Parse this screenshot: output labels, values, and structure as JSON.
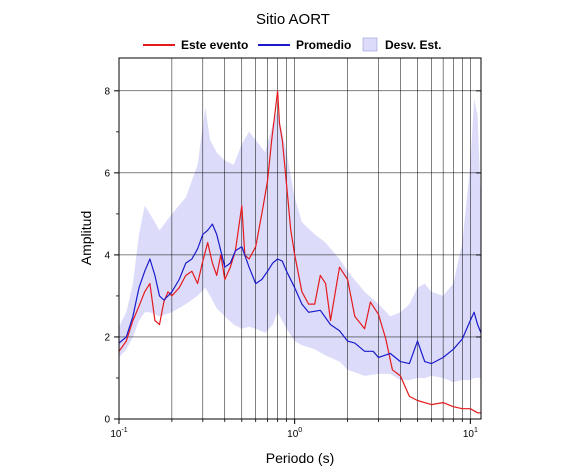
{
  "chart_data": {
    "type": "line",
    "title": "Sitio AORT",
    "xlabel": "Periodo (s)",
    "ylabel": "Amplitud",
    "xscale": "log",
    "xlim": [
      0.1,
      11.5
    ],
    "ylim": [
      0,
      8.8
    ],
    "grid": true,
    "legend_placement": "top",
    "x_ticks": [
      {
        "base": "10",
        "exp": "-1",
        "value": 0.1
      },
      {
        "base": "10",
        "exp": "0",
        "value": 1
      },
      {
        "base": "10",
        "exp": "1",
        "value": 10
      }
    ],
    "y_ticks": [
      "0",
      "2",
      "4",
      "6",
      "8"
    ],
    "band": {
      "name": "Desv. Est.",
      "color": "#dcdcfa",
      "x": [
        0.1,
        0.11,
        0.12,
        0.13,
        0.14,
        0.15,
        0.17,
        0.2,
        0.24,
        0.28,
        0.31,
        0.33,
        0.36,
        0.4,
        0.45,
        0.5,
        0.55,
        0.6,
        0.68,
        0.75,
        0.8,
        0.9,
        1.0,
        1.1,
        1.3,
        1.5,
        1.8,
        2.0,
        2.5,
        3.0,
        3.5,
        4.0,
        4.5,
        5.0,
        5.5,
        6.0,
        7.0,
        8.0,
        9.0,
        10.0,
        10.5,
        11.0,
        11.5
      ],
      "upper": [
        2.25,
        2.6,
        3.3,
        4.5,
        5.2,
        5.0,
        4.6,
        5.0,
        5.4,
        6.2,
        7.6,
        6.8,
        6.5,
        6.3,
        6.2,
        6.7,
        7.0,
        6.8,
        6.5,
        7.2,
        7.5,
        6.5,
        5.4,
        4.8,
        4.5,
        4.3,
        3.9,
        3.6,
        3.1,
        2.8,
        2.5,
        2.6,
        2.8,
        3.2,
        3.3,
        3.1,
        3.0,
        3.3,
        4.3,
        6.2,
        7.8,
        7.4,
        5.2
      ],
      "lower": [
        1.5,
        1.7,
        2.0,
        2.4,
        2.6,
        2.6,
        2.5,
        2.6,
        2.8,
        3.0,
        3.2,
        3.0,
        2.7,
        2.5,
        2.3,
        2.2,
        2.25,
        2.2,
        2.1,
        2.3,
        2.6,
        2.2,
        1.9,
        1.8,
        1.7,
        1.55,
        1.4,
        1.2,
        1.05,
        1.1,
        1.1,
        0.95,
        0.95,
        1.0,
        1.0,
        1.05,
        1.0,
        0.9,
        0.95,
        0.95,
        1.0,
        1.0,
        1.0
      ]
    },
    "series": [
      {
        "name": "Este evento",
        "color": "#e41a1c",
        "x": [
          0.1,
          0.11,
          0.12,
          0.13,
          0.14,
          0.15,
          0.16,
          0.17,
          0.18,
          0.19,
          0.2,
          0.22,
          0.24,
          0.26,
          0.28,
          0.3,
          0.32,
          0.34,
          0.36,
          0.38,
          0.4,
          0.43,
          0.46,
          0.5,
          0.52,
          0.55,
          0.6,
          0.65,
          0.7,
          0.74,
          0.78,
          0.8,
          0.82,
          0.85,
          0.9,
          0.95,
          1.0,
          1.1,
          1.2,
          1.3,
          1.4,
          1.5,
          1.6,
          1.8,
          2.0,
          2.2,
          2.5,
          2.7,
          3.0,
          3.3,
          3.6,
          4.0,
          4.5,
          5.0,
          6.0,
          7.0,
          8.0,
          9.0,
          10.0,
          11.0,
          11.5
        ],
        "y": [
          1.65,
          1.9,
          2.4,
          2.75,
          3.1,
          3.3,
          2.4,
          2.3,
          2.85,
          3.1,
          3.0,
          3.2,
          3.5,
          3.6,
          3.3,
          3.85,
          4.3,
          3.8,
          3.5,
          4.0,
          3.4,
          3.7,
          4.1,
          5.2,
          4.0,
          3.9,
          4.2,
          5.0,
          5.8,
          6.8,
          7.6,
          8.0,
          7.2,
          6.8,
          5.7,
          4.6,
          4.0,
          3.1,
          2.8,
          2.8,
          3.5,
          3.3,
          2.4,
          3.7,
          3.4,
          2.5,
          2.2,
          2.85,
          2.55,
          1.95,
          1.2,
          1.05,
          0.55,
          0.45,
          0.35,
          0.4,
          0.3,
          0.25,
          0.25,
          0.15,
          0.15
        ]
      },
      {
        "name": "Promedio",
        "color": "#1a1acc",
        "x": [
          0.1,
          0.11,
          0.12,
          0.13,
          0.14,
          0.15,
          0.16,
          0.17,
          0.18,
          0.19,
          0.2,
          0.22,
          0.24,
          0.26,
          0.28,
          0.3,
          0.32,
          0.34,
          0.36,
          0.38,
          0.4,
          0.43,
          0.46,
          0.5,
          0.55,
          0.6,
          0.65,
          0.7,
          0.75,
          0.8,
          0.85,
          0.9,
          1.0,
          1.1,
          1.2,
          1.4,
          1.6,
          1.8,
          2.0,
          2.2,
          2.5,
          2.8,
          3.0,
          3.5,
          4.0,
          4.5,
          5.0,
          5.5,
          6.0,
          7.0,
          8.0,
          9.0,
          10.0,
          10.5,
          11.0,
          11.5
        ],
        "y": [
          1.85,
          2.0,
          2.5,
          3.2,
          3.6,
          3.9,
          3.5,
          3.0,
          2.9,
          3.0,
          3.1,
          3.4,
          3.8,
          3.9,
          4.15,
          4.5,
          4.6,
          4.75,
          4.5,
          4.1,
          3.7,
          3.8,
          4.1,
          4.2,
          3.7,
          3.3,
          3.4,
          3.6,
          3.8,
          3.9,
          3.85,
          3.6,
          3.2,
          2.8,
          2.6,
          2.65,
          2.3,
          2.15,
          1.9,
          1.85,
          1.65,
          1.65,
          1.5,
          1.6,
          1.4,
          1.35,
          1.9,
          1.4,
          1.35,
          1.5,
          1.7,
          1.95,
          2.4,
          2.6,
          2.3,
          2.1
        ]
      }
    ]
  }
}
